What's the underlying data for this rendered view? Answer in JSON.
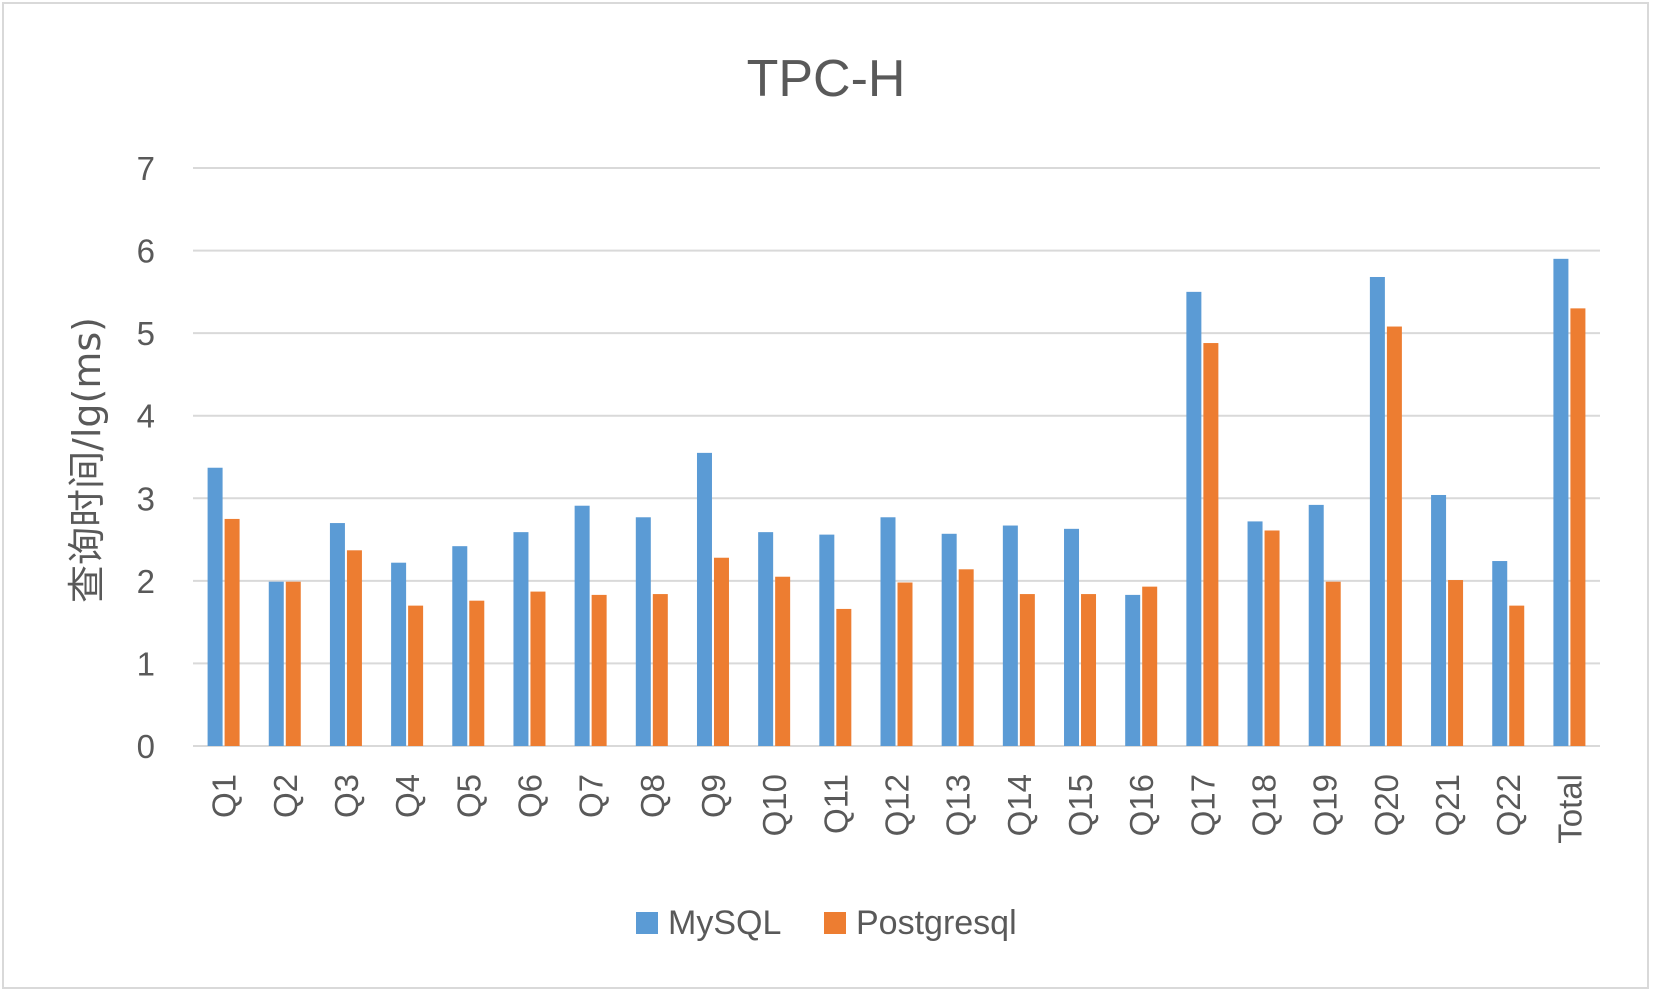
{
  "chart_data": {
    "type": "bar",
    "title": "TPC-H",
    "xlabel": "",
    "ylabel": "查询时间/lg(ms)",
    "ylim": [
      0,
      7
    ],
    "yticks": [
      0,
      1,
      2,
      3,
      4,
      5,
      6,
      7
    ],
    "grid": true,
    "legend_position": "bottom",
    "categories": [
      "Q1",
      "Q2",
      "Q3",
      "Q4",
      "Q5",
      "Q6",
      "Q7",
      "Q8",
      "Q9",
      "Q10",
      "Q11",
      "Q12",
      "Q13",
      "Q14",
      "Q15",
      "Q16",
      "Q17",
      "Q18",
      "Q19",
      "Q20",
      "Q21",
      "Q22",
      "Total"
    ],
    "series": [
      {
        "name": "MySQL",
        "color": "#5b9bd5",
        "values": [
          3.37,
          1.99,
          2.7,
          2.22,
          2.42,
          2.59,
          2.91,
          2.77,
          3.55,
          2.59,
          2.56,
          2.77,
          2.57,
          2.67,
          2.63,
          1.83,
          5.5,
          2.72,
          2.92,
          5.68,
          3.04,
          2.24,
          5.9
        ]
      },
      {
        "name": "Postgresql",
        "color": "#ed7d31",
        "values": [
          2.75,
          1.99,
          2.37,
          1.7,
          1.76,
          1.87,
          1.83,
          1.84,
          2.28,
          2.05,
          1.66,
          1.98,
          2.14,
          1.84,
          1.84,
          1.93,
          4.88,
          2.61,
          1.99,
          5.08,
          2.01,
          1.7,
          5.3
        ]
      }
    ]
  }
}
